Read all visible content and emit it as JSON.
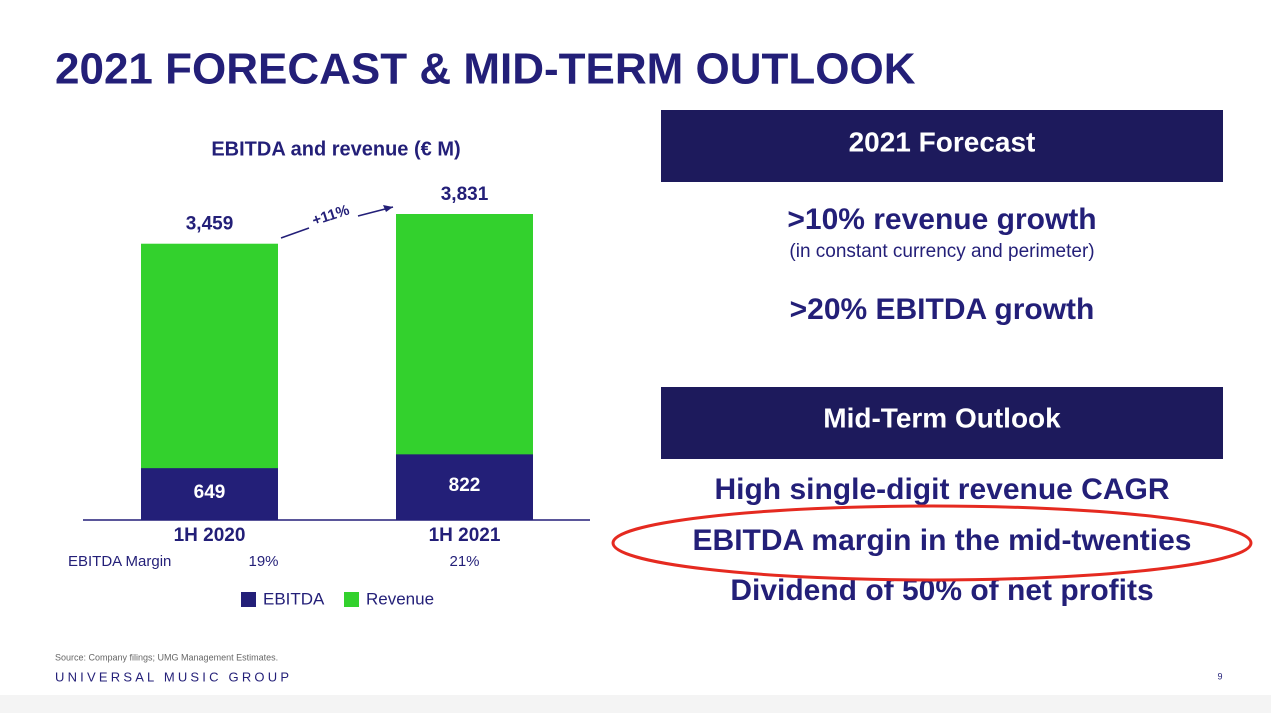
{
  "title": "2021 FORECAST & MID-TERM OUTLOOK",
  "chart_data": {
    "type": "bar",
    "title": "EBITDA and revenue (€ M)",
    "categories": [
      "1H 2020",
      "1H 2021"
    ],
    "series": [
      {
        "name": "EBITDA",
        "color": "#231f78",
        "values": [
          649,
          822
        ],
        "value_labels": [
          "649",
          "822"
        ]
      },
      {
        "name": "Revenue",
        "color": "#33d12d",
        "values": [
          3459,
          3831
        ],
        "value_labels": [
          "3,459",
          "3,831"
        ]
      }
    ],
    "margin": {
      "label": "EBITDA Margin",
      "values": [
        19,
        21
      ],
      "value_labels": [
        "19%",
        "21%"
      ]
    },
    "annotation": "+11%"
  },
  "forecast": {
    "heading": "2021 Forecast",
    "items": [
      {
        "text": ">10% revenue growth",
        "note": "(in constant currency and perimeter)"
      },
      {
        "text": ">20% EBITDA growth"
      }
    ]
  },
  "outlook": {
    "heading": "Mid-Term Outlook",
    "items": [
      "High single-digit revenue CAGR",
      "EBITDA margin in the mid-twenties",
      "Dividend of 50% of net profits"
    ]
  },
  "source": "Source: Company filings; UMG Management Estimates.",
  "brand": "UNIVERSAL MUSIC GROUP",
  "page_number": 9
}
